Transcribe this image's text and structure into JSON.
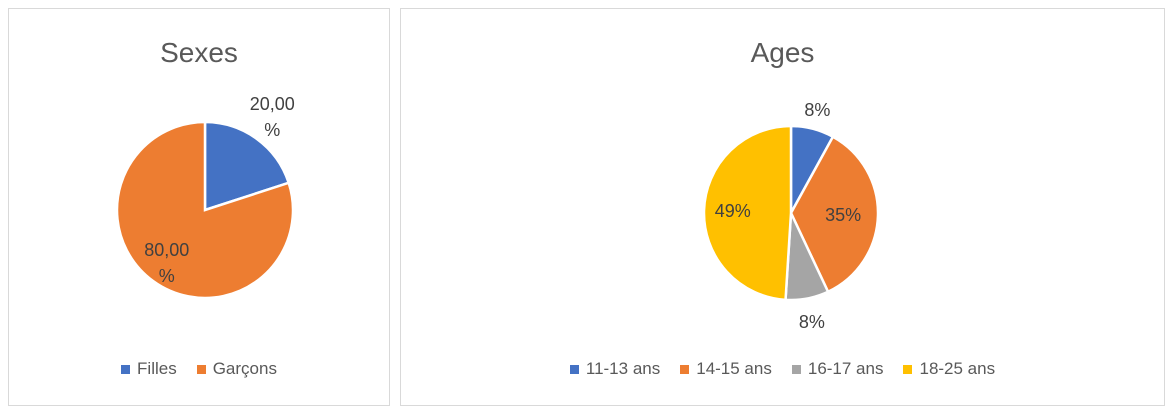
{
  "chart_data": [
    {
      "type": "pie",
      "title": "Sexes",
      "categories": [
        "Filles",
        "Garçons"
      ],
      "values": [
        20,
        80
      ],
      "value_labels": [
        "20,00 %",
        "80,00 %"
      ],
      "colors": [
        "#4472c4",
        "#ed7d31"
      ],
      "legend": "bottom"
    },
    {
      "type": "pie",
      "title": "Ages",
      "categories": [
        "11-13 ans",
        "14-15 ans",
        "16-17 ans",
        "18-25 ans"
      ],
      "values": [
        8,
        35,
        8,
        49
      ],
      "value_labels": [
        "8%",
        "35%",
        "8%",
        "49%"
      ],
      "colors": [
        "#4472c4",
        "#ed7d31",
        "#a5a5a5",
        "#ffc000"
      ],
      "legend": "bottom"
    }
  ]
}
